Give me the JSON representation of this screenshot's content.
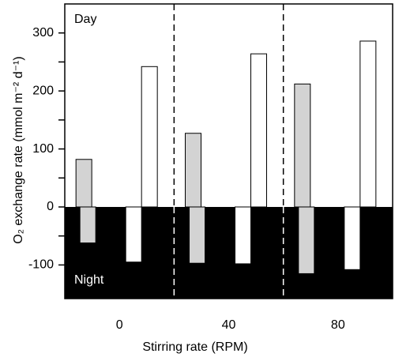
{
  "chart_data": {
    "type": "bar",
    "y_label": "O₂ exchange rate (mmol m⁻² d⁻¹)",
    "x_label": "Stirring rate (RPM)",
    "annotations": [
      "Day",
      "Night"
    ],
    "categories": [
      "0",
      "40",
      "80"
    ],
    "series": [
      {
        "color": "#d3d3d3",
        "values": [
          82,
          127,
          212
        ]
      },
      {
        "color": "#ffffff",
        "values": [
          242,
          264,
          286
        ]
      },
      {
        "color": "#d3d3d3",
        "values": [
          -62,
          -97,
          -115
        ]
      },
      {
        "color": "#ffffff",
        "values": [
          -95,
          -98,
          -108
        ]
      }
    ],
    "ylim": [
      -158,
      350
    ],
    "yticks": [
      -100,
      0,
      100,
      200,
      300
    ],
    "yminorticks": [
      -50,
      50,
      150,
      250
    ],
    "night_color": "#000000"
  }
}
